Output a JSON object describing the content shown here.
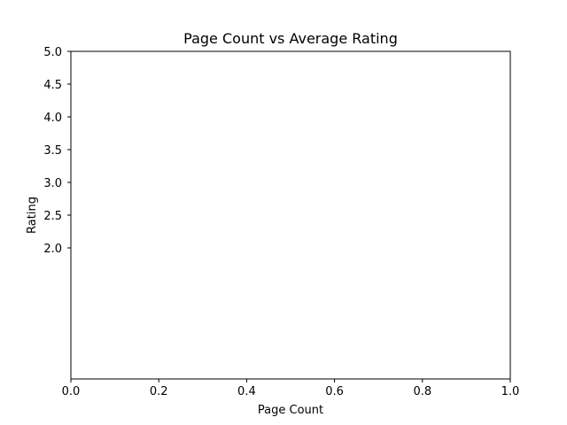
{
  "chart_data": {
    "type": "scatter",
    "title": "Page Count vs Average Rating",
    "xlabel": "Page Count",
    "ylabel": "Rating",
    "xlim": [
      0.0,
      1.0
    ],
    "ylim": [
      0.0,
      5.0
    ],
    "x_ticks": [
      "0.0",
      "0.2",
      "0.4",
      "0.6",
      "0.8",
      "1.0"
    ],
    "x_tick_values": [
      0.0,
      0.2,
      0.4,
      0.6,
      0.8,
      1.0
    ],
    "y_ticks": [
      "2.0",
      "2.5",
      "3.0",
      "3.5",
      "4.0",
      "4.5",
      "5.0"
    ],
    "y_tick_values": [
      2.0,
      2.5,
      3.0,
      3.5,
      4.0,
      4.5,
      5.0
    ],
    "series": [],
    "grid": false,
    "legend": "none"
  }
}
